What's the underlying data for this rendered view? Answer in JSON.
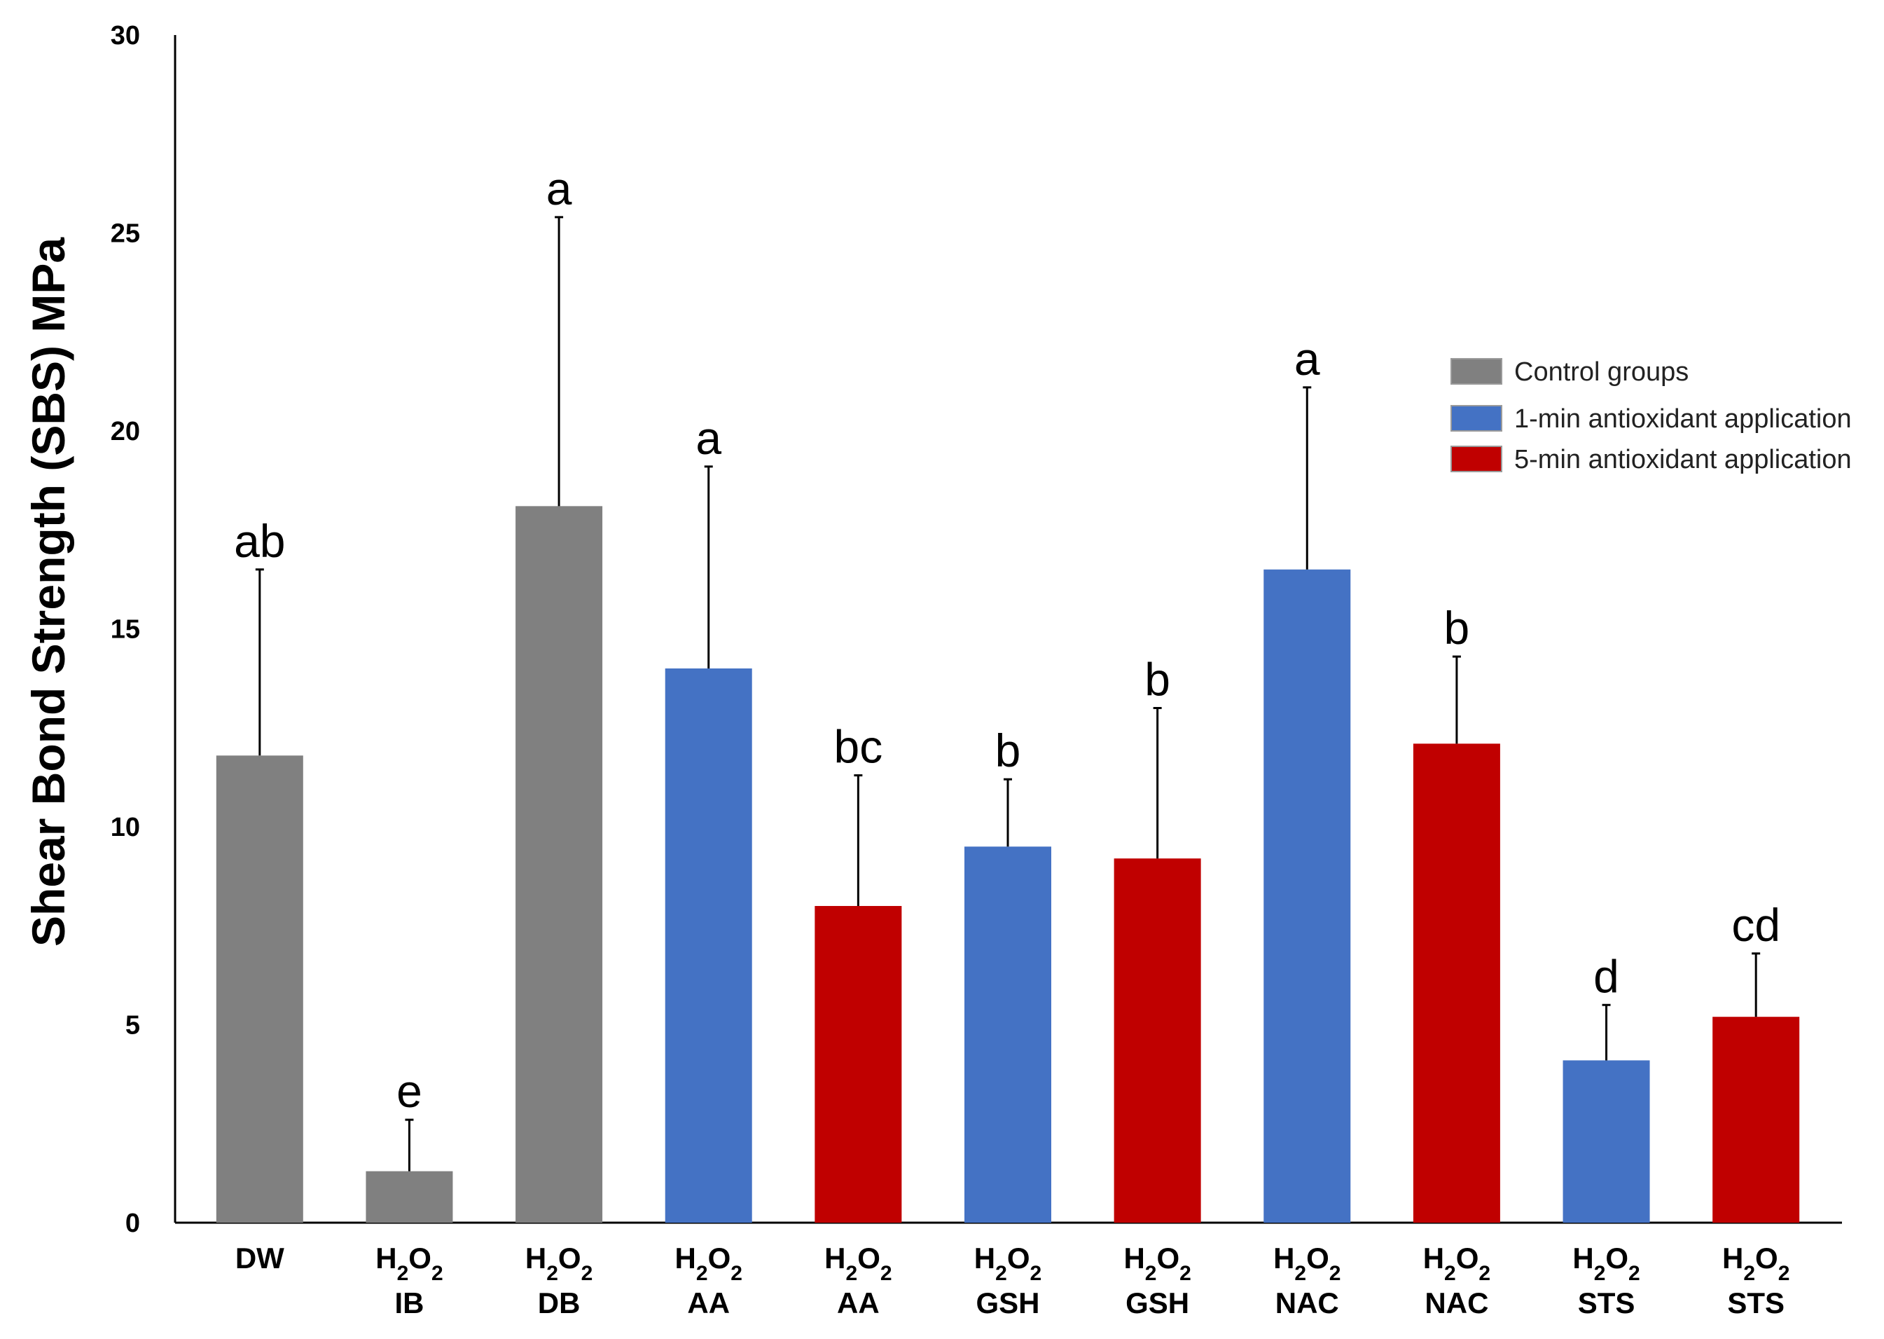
{
  "chart_data": {
    "type": "bar",
    "title": "",
    "xlabel": "",
    "ylabel": "Shear Bond Strength (SBS) MPa",
    "ylim": [
      0,
      30
    ],
    "yticks": [
      0,
      5,
      10,
      15,
      20,
      25,
      30
    ],
    "grid": false,
    "legend_position": "top-right",
    "colors": {
      "control": "#808080",
      "one_min": "#4472C4",
      "five_min": "#C00000"
    },
    "legend": [
      {
        "key": "control",
        "label": "Control groups"
      },
      {
        "key": "one_min",
        "label": "1-min antioxidant application"
      },
      {
        "key": "five_min",
        "label": "5-min antioxidant application"
      }
    ],
    "categories": [
      {
        "line1": "DW",
        "line2": "",
        "group": "control",
        "value": 11.8,
        "error": 4.7,
        "sig": "ab"
      },
      {
        "line1": "H2O2",
        "line2": "IB",
        "group": "control",
        "value": 1.3,
        "error": 1.3,
        "sig": "e"
      },
      {
        "line1": "H2O2",
        "line2": "DB",
        "group": "control",
        "value": 18.1,
        "error": 7.3,
        "sig": "a"
      },
      {
        "line1": "H2O2",
        "line2": "AA",
        "group": "one_min",
        "value": 14.0,
        "error": 5.1,
        "sig": "a"
      },
      {
        "line1": "H2O2",
        "line2": "AA",
        "group": "five_min",
        "value": 8.0,
        "error": 3.3,
        "sig": "bc"
      },
      {
        "line1": "H2O2",
        "line2": "GSH",
        "group": "one_min",
        "value": 9.5,
        "error": 1.7,
        "sig": "b"
      },
      {
        "line1": "H2O2",
        "line2": "GSH",
        "group": "five_min",
        "value": 9.2,
        "error": 3.8,
        "sig": "b"
      },
      {
        "line1": "H2O2",
        "line2": "NAC",
        "group": "one_min",
        "value": 16.5,
        "error": 4.6,
        "sig": "a"
      },
      {
        "line1": "H2O2",
        "line2": "NAC",
        "group": "five_min",
        "value": 12.1,
        "error": 2.2,
        "sig": "b"
      },
      {
        "line1": "H2O2",
        "line2": "STS",
        "group": "one_min",
        "value": 4.1,
        "error": 1.4,
        "sig": "d"
      },
      {
        "line1": "H2O2",
        "line2": "STS",
        "group": "five_min",
        "value": 5.2,
        "error": 1.6,
        "sig": "cd"
      }
    ]
  }
}
